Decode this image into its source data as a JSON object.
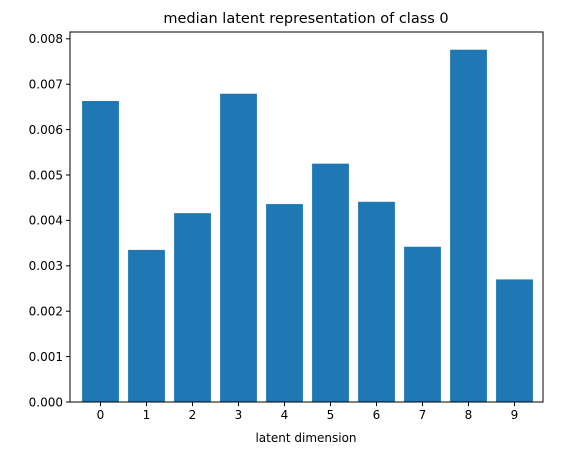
{
  "chart_data": {
    "type": "bar",
    "title": "median latent representation of class 0",
    "xlabel": "latent dimension",
    "ylabel": "",
    "categories": [
      "0",
      "1",
      "2",
      "3",
      "4",
      "5",
      "6",
      "7",
      "8",
      "9"
    ],
    "values": [
      0.00663,
      0.00335,
      0.00416,
      0.00679,
      0.00436,
      0.00525,
      0.00441,
      0.00342,
      0.00776,
      0.0027
    ],
    "ylim": [
      0,
      0.00815
    ],
    "yticks": [
      "0.000",
      "0.001",
      "0.002",
      "0.003",
      "0.004",
      "0.005",
      "0.006",
      "0.007",
      "0.008"
    ],
    "grid": false,
    "bar_color": "#1f77b4"
  }
}
